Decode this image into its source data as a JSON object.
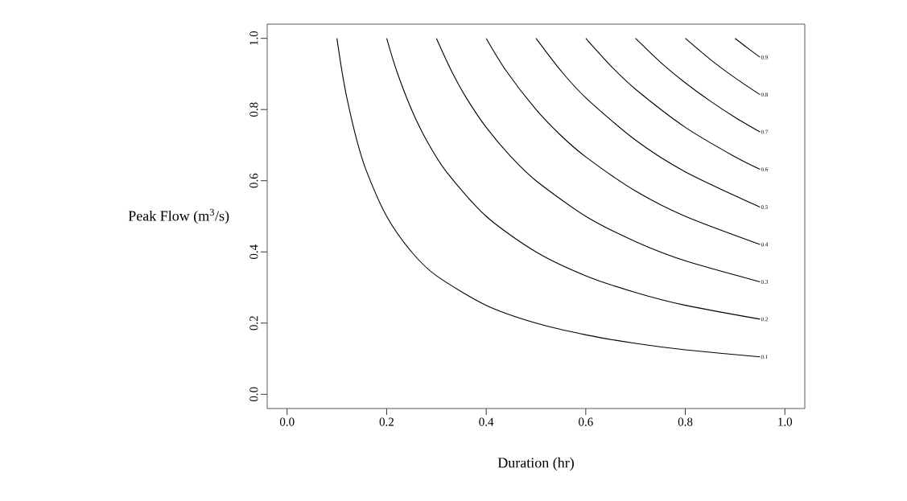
{
  "chart_data": {
    "type": "line",
    "xlabel": "Duration (hr)",
    "ylabel": "Peak Flow (m$^{3}$/s)",
    "xlim": [
      -0.04,
      1.04
    ],
    "ylim": [
      -0.04,
      1.04
    ],
    "xticks": [
      {
        "value": 0,
        "label": "0.0"
      },
      0.2,
      0.4,
      0.6,
      0.8,
      {
        "value": 1,
        "label": "1.0"
      }
    ],
    "yticks": [
      {
        "value": 0,
        "label": "0.0"
      },
      0.2,
      0.4,
      0.6,
      0.8,
      {
        "value": 1,
        "label": "1.0"
      }
    ],
    "grid": false,
    "legend": false,
    "marker": "none",
    "line_style": "solid",
    "series": [
      {
        "name": "0.1",
        "color": "#000000",
        "x": [
          0.1,
          0.11,
          0.12,
          0.14,
          0.16,
          0.2,
          0.25,
          0.3,
          0.4,
          0.5,
          0.6,
          0.7,
          0.8,
          0.95
        ],
        "values": [
          1,
          0.909,
          0.833,
          0.714,
          0.625,
          0.5,
          0.4,
          0.333,
          0.25,
          0.2,
          0.167,
          0.143,
          0.125,
          0.105
        ]
      },
      {
        "name": "0.2",
        "color": "#000000",
        "x": [
          0.2,
          0.22,
          0.25,
          0.28,
          0.32,
          0.4,
          0.5,
          0.6,
          0.7,
          0.8,
          0.95
        ],
        "values": [
          1,
          0.909,
          0.8,
          0.714,
          0.625,
          0.5,
          0.4,
          0.333,
          0.286,
          0.25,
          0.211
        ]
      },
      {
        "name": "0.3",
        "color": "#000000",
        "x": [
          0.3,
          0.33,
          0.36,
          0.4,
          0.45,
          0.5,
          0.6,
          0.7,
          0.8,
          0.95
        ],
        "values": [
          1,
          0.909,
          0.833,
          0.75,
          0.667,
          0.6,
          0.5,
          0.429,
          0.375,
          0.316
        ]
      },
      {
        "name": "0.4",
        "color": "#000000",
        "x": [
          0.4,
          0.44,
          0.5,
          0.55,
          0.6,
          0.7,
          0.8,
          0.95
        ],
        "values": [
          1,
          0.909,
          0.8,
          0.727,
          0.667,
          0.571,
          0.5,
          0.421
        ]
      },
      {
        "name": "0.5",
        "color": "#000000",
        "x": [
          0.5,
          0.55,
          0.6,
          0.7,
          0.8,
          0.95
        ],
        "values": [
          1,
          0.909,
          0.833,
          0.714,
          0.625,
          0.526
        ]
      },
      {
        "name": "0.6",
        "color": "#000000",
        "x": [
          0.6,
          0.65,
          0.7,
          0.8,
          0.9,
          0.95
        ],
        "values": [
          1,
          0.923,
          0.857,
          0.75,
          0.667,
          0.632
        ]
      },
      {
        "name": "0.7",
        "color": "#000000",
        "x": [
          0.7,
          0.75,
          0.8,
          0.85,
          0.9,
          0.95
        ],
        "values": [
          1,
          0.933,
          0.875,
          0.824,
          0.778,
          0.737
        ]
      },
      {
        "name": "0.8",
        "color": "#000000",
        "x": [
          0.8,
          0.85,
          0.9,
          0.95
        ],
        "values": [
          1,
          0.941,
          0.889,
          0.842
        ]
      },
      {
        "name": "0.9",
        "color": "#000000",
        "x": [
          0.9,
          0.925,
          0.95
        ],
        "values": [
          1,
          0.973,
          0.947
        ]
      }
    ]
  }
}
